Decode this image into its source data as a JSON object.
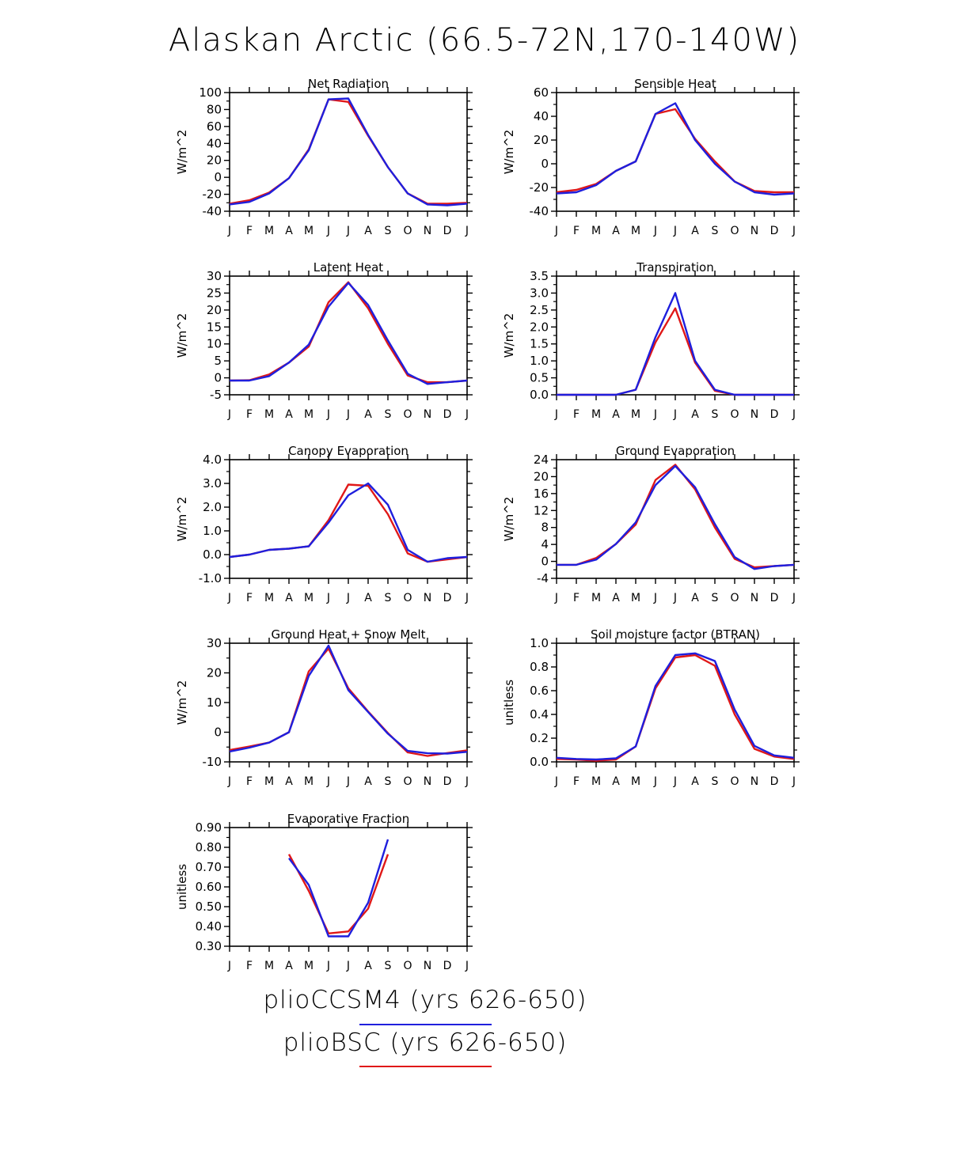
{
  "title": "Alaskan Arctic (66.5-72N,170-140W)",
  "months": [
    "J",
    "F",
    "M",
    "A",
    "M",
    "J",
    "J",
    "A",
    "S",
    "O",
    "N",
    "D",
    "J"
  ],
  "colors": {
    "pliocesm4": "#1f1fdd",
    "pliobsc": "#e01818",
    "axis": "#000000"
  },
  "chart_data": [
    {
      "type": "line",
      "title": "Net Radiation",
      "ylabel": "W/m^2",
      "ylim": [
        -40,
        100
      ],
      "yticks": [
        -40,
        -20,
        0,
        20,
        40,
        60,
        80,
        100
      ],
      "ytick_labels": [
        "-40",
        "-20",
        "0",
        "20",
        "40",
        "60",
        "80",
        "100"
      ],
      "series": [
        {
          "name": "plioCCSM4 (yrs 626-650)",
          "color": "#1f1fdd",
          "values": [
            -32,
            -29,
            -19,
            -1,
            32,
            92,
            93,
            50,
            12,
            -19,
            -32,
            -33,
            -31
          ]
        },
        {
          "name": "plioBSC (yrs 626-650)",
          "color": "#e01818",
          "values": [
            -31,
            -27,
            -18,
            -1,
            33,
            92,
            89,
            49,
            12,
            -19,
            -31,
            -31,
            -30
          ]
        }
      ]
    },
    {
      "type": "line",
      "title": "Sensible Heat",
      "ylabel": "W/m^2",
      "ylim": [
        -40,
        60
      ],
      "yticks": [
        -40,
        -20,
        0,
        20,
        40,
        60
      ],
      "ytick_labels": [
        "-40",
        "-20",
        "0",
        "20",
        "40",
        "60"
      ],
      "series": [
        {
          "name": "plioCCSM4 (yrs 626-650)",
          "color": "#1f1fdd",
          "values": [
            -25,
            -24,
            -18,
            -6,
            2,
            42,
            51,
            20,
            0,
            -15,
            -24,
            -26,
            -25
          ]
        },
        {
          "name": "plioBSC (yrs 626-650)",
          "color": "#e01818",
          "values": [
            -24,
            -22,
            -17,
            -6,
            2,
            42,
            46,
            21,
            2,
            -15,
            -23,
            -24,
            -24
          ]
        }
      ]
    },
    {
      "type": "line",
      "title": "Latent Heat",
      "ylabel": "W/m^2",
      "ylim": [
        -5,
        30
      ],
      "yticks": [
        -5,
        0,
        5,
        10,
        15,
        20,
        25,
        30
      ],
      "ytick_labels": [
        "-5",
        "0",
        "5",
        "10",
        "15",
        "20",
        "25",
        "30"
      ],
      "series": [
        {
          "name": "plioCCSM4 (yrs 626-650)",
          "color": "#1f1fdd",
          "values": [
            -0.8,
            -0.8,
            0.5,
            4.5,
            9.8,
            21,
            28,
            21.5,
            11,
            1.2,
            -1.8,
            -1.3,
            -0.8
          ]
        },
        {
          "name": "plioBSC (yrs 626-650)",
          "color": "#e01818",
          "values": [
            -0.8,
            -0.7,
            1.0,
            4.5,
            9.2,
            22.3,
            28.2,
            20.5,
            10,
            0.7,
            -1.3,
            -1.3,
            -0.8
          ]
        }
      ]
    },
    {
      "type": "line",
      "title": "Transpiration",
      "ylabel": "W/m^2",
      "ylim": [
        0,
        3.5
      ],
      "yticks": [
        0,
        0.5,
        1,
        1.5,
        2,
        2.5,
        3,
        3.5
      ],
      "ytick_labels": [
        "0.0",
        "0.5",
        "1.0",
        "1.5",
        "2.0",
        "2.5",
        "3.0",
        "3.5"
      ],
      "series": [
        {
          "name": "plioCCSM4 (yrs 626-650)",
          "color": "#1f1fdd",
          "values": [
            0,
            0,
            0,
            0,
            0.15,
            1.7,
            3.0,
            1.0,
            0.15,
            0,
            0,
            0,
            0
          ]
        },
        {
          "name": "plioBSC (yrs 626-650)",
          "color": "#e01818",
          "values": [
            0,
            0,
            0,
            0,
            0.15,
            1.55,
            2.55,
            0.95,
            0.12,
            0,
            0,
            0,
            0
          ]
        }
      ]
    },
    {
      "type": "line",
      "title": "Canopy Evaporation",
      "ylabel": "W/m^2",
      "ylim": [
        -1,
        4
      ],
      "yticks": [
        -1,
        0,
        1,
        2,
        3,
        4
      ],
      "ytick_labels": [
        "-1.0",
        "0.0",
        "1.0",
        "2.0",
        "3.0",
        "4.0"
      ],
      "series": [
        {
          "name": "plioCCSM4 (yrs 626-650)",
          "color": "#1f1fdd",
          "values": [
            -0.1,
            0,
            0.2,
            0.25,
            0.35,
            1.35,
            2.5,
            3.0,
            2.1,
            0.2,
            -0.3,
            -0.15,
            -0.1
          ]
        },
        {
          "name": "plioBSC (yrs 626-650)",
          "color": "#e01818",
          "values": [
            -0.1,
            0,
            0.2,
            0.25,
            0.35,
            1.45,
            2.95,
            2.9,
            1.7,
            0.05,
            -0.3,
            -0.2,
            -0.1
          ]
        }
      ]
    },
    {
      "type": "line",
      "title": "Ground Evaporation",
      "ylabel": "W/m^2",
      "ylim": [
        -4,
        24
      ],
      "yticks": [
        -4,
        0,
        4,
        8,
        12,
        16,
        20,
        24
      ],
      "ytick_labels": [
        "-4",
        "0",
        "4",
        "8",
        "12",
        "16",
        "20",
        "24"
      ],
      "series": [
        {
          "name": "plioCCSM4 (yrs 626-650)",
          "color": "#1f1fdd",
          "values": [
            -0.8,
            -0.8,
            0.4,
            4.1,
            9.2,
            18,
            22.5,
            17.5,
            8.8,
            1.0,
            -1.8,
            -1.1,
            -0.8
          ]
        },
        {
          "name": "plioBSC (yrs 626-650)",
          "color": "#e01818",
          "values": [
            -0.8,
            -0.8,
            0.8,
            4.1,
            8.7,
            19.2,
            22.8,
            17,
            8,
            0.6,
            -1.4,
            -1.1,
            -0.8
          ]
        }
      ]
    },
    {
      "type": "line",
      "title": "Ground Heat + Snow Melt",
      "ylabel": "W/m^2",
      "ylim": [
        -10,
        30
      ],
      "yticks": [
        -10,
        0,
        10,
        20,
        30
      ],
      "ytick_labels": [
        "-10",
        "0",
        "10",
        "20",
        "30"
      ],
      "series": [
        {
          "name": "plioCCSM4 (yrs 626-650)",
          "color": "#1f1fdd",
          "values": [
            -6.5,
            -5.2,
            -3.5,
            0,
            19,
            29.2,
            14.2,
            6.8,
            -0.5,
            -6.3,
            -7.1,
            -7.2,
            -6.6
          ]
        },
        {
          "name": "plioBSC (yrs 626-650)",
          "color": "#e01818",
          "values": [
            -6.0,
            -4.8,
            -3.5,
            0,
            20.5,
            28.2,
            14.8,
            7,
            -0.3,
            -6.8,
            -8,
            -7,
            -6.1
          ]
        }
      ]
    },
    {
      "type": "line",
      "title": "Soil moisture factor (BTRAN)",
      "ylabel": "unitless",
      "ylim": [
        0,
        1
      ],
      "yticks": [
        0,
        0.2,
        0.4,
        0.6,
        0.8,
        1
      ],
      "ytick_labels": [
        "0.0",
        "0.2",
        "0.4",
        "0.6",
        "0.8",
        "1.0"
      ],
      "series": [
        {
          "name": "plioCCSM4 (yrs 626-650)",
          "color": "#1f1fdd",
          "values": [
            0.035,
            0.025,
            0.02,
            0.03,
            0.13,
            0.64,
            0.9,
            0.915,
            0.85,
            0.44,
            0.135,
            0.055,
            0.035
          ]
        },
        {
          "name": "plioBSC (yrs 626-650)",
          "color": "#e01818",
          "values": [
            0.025,
            0.02,
            0.01,
            0.02,
            0.13,
            0.62,
            0.88,
            0.9,
            0.81,
            0.4,
            0.11,
            0.045,
            0.025
          ]
        }
      ]
    },
    {
      "type": "line",
      "title": "Evaporative Fraction",
      "ylabel": "unitless",
      "ylim": [
        0.3,
        0.9
      ],
      "yticks": [
        0.3,
        0.4,
        0.5,
        0.6,
        0.7,
        0.8,
        0.9
      ],
      "ytick_labels": [
        "0.30",
        "0.40",
        "0.50",
        "0.60",
        "0.70",
        "0.80",
        "0.90"
      ],
      "series": [
        {
          "name": "plioCCSM4 (yrs 626-650)",
          "color": "#1f1fdd",
          "values": [
            null,
            null,
            null,
            0.745,
            0.61,
            0.35,
            0.35,
            0.52,
            0.84,
            null,
            null,
            null,
            null
          ]
        },
        {
          "name": "plioBSC (yrs 626-650)",
          "color": "#e01818",
          "values": [
            null,
            null,
            null,
            0.765,
            0.58,
            0.365,
            0.375,
            0.49,
            0.765,
            null,
            null,
            null,
            null
          ]
        }
      ]
    }
  ],
  "legend": [
    {
      "label": "plioCCSM4 (yrs 626-650)",
      "color": "#1f1fdd"
    },
    {
      "label": "plioBSC (yrs 626-650)",
      "color": "#e01818"
    }
  ]
}
